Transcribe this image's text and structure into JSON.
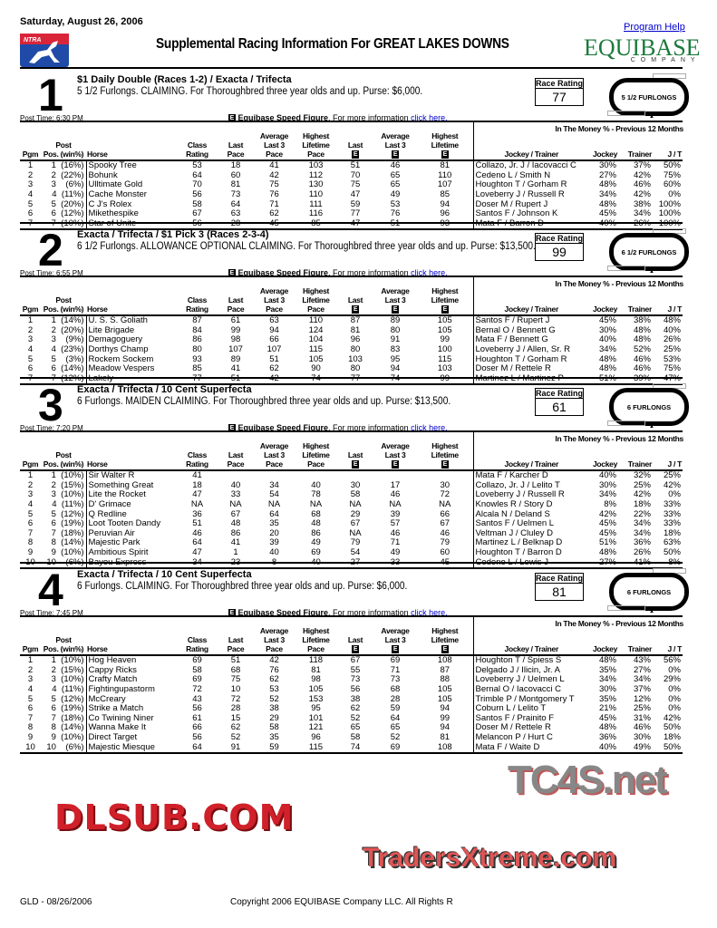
{
  "header": {
    "date": "Saturday, August 26, 2006",
    "logo_text": "NTRA",
    "title": "Supplemental Racing Information For GREAT LAKES DOWNS",
    "program_help": "Program Help",
    "equibase_logo": "EQUIBASE",
    "equibase_sub": "COMPANY",
    "watermark_top": "TC4S.net"
  },
  "speed_figure": {
    "icon": "E",
    "label": "Equibase Speed Figure",
    "text": ". For more information ",
    "link": "click here."
  },
  "rating_label": "Race Rating",
  "table_headers": [
    {
      "lines": [
        "",
        "",
        "Pgm"
      ],
      "e": false,
      "align": "c"
    },
    {
      "lines": [
        "",
        "Post",
        "Pos. (win%)"
      ],
      "e": false,
      "align": "c"
    },
    {
      "lines": [
        "",
        "",
        "Horse"
      ],
      "e": false,
      "align": "l"
    },
    {
      "lines": [
        "",
        "Class",
        "Rating"
      ],
      "e": false,
      "align": "c"
    },
    {
      "lines": [
        "",
        "Last",
        "Pace"
      ],
      "e": false,
      "align": "c"
    },
    {
      "lines": [
        "Average",
        "Last 3",
        "Pace"
      ],
      "e": false,
      "align": "c"
    },
    {
      "lines": [
        "Highest",
        "Lifetime",
        "Pace"
      ],
      "e": false,
      "align": "c"
    },
    {
      "lines": [
        "",
        "",
        "Last"
      ],
      "e": true,
      "align": "c"
    },
    {
      "lines": [
        "",
        "Average",
        "Last 3"
      ],
      "e": true,
      "align": "c"
    },
    {
      "lines": [
        "",
        "Highest",
        "Lifetime"
      ],
      "e": true,
      "align": "c"
    },
    {
      "lines": [
        "",
        "",
        "Jockey / Trainer"
      ],
      "e": false,
      "align": "c"
    },
    {
      "lines": [
        "",
        "",
        "Jockey"
      ],
      "e": false,
      "align": "r"
    },
    {
      "lines": [
        "",
        "",
        "Trainer"
      ],
      "e": false,
      "align": "r"
    },
    {
      "lines": [
        "",
        "",
        "J / T"
      ],
      "e": false,
      "align": "r"
    }
  ],
  "money_header": "In The Money % - Previous 12 Months",
  "races": [
    {
      "number": "1",
      "title": "$1 Daily Double (Races 1-2) / Exacta / Trifecta",
      "description": "5 1/2 Furlongs. CLAIMING. For Thoroughbred three year olds and up. Purse: $6,000.",
      "rating": "77",
      "distance": "5 1/2 FURLONGS",
      "post_time": "Post Time: 6:30 PM",
      "entries": [
        [
          "1",
          "1  (16%)",
          "Spooky Tree",
          "53",
          "18",
          "41",
          "103",
          "51",
          "46",
          "81",
          "Collazo, Jr. J / Iacovacci C",
          "30%",
          "37%",
          "50%"
        ],
        [
          "2",
          "2  (22%)",
          "Bohunk",
          "64",
          "60",
          "42",
          "112",
          "70",
          "65",
          "110",
          "Cedeno L / Smith N",
          "27%",
          "42%",
          "75%"
        ],
        [
          "3",
          "3    (6%)",
          "Ulltimate Gold",
          "70",
          "81",
          "75",
          "130",
          "75",
          "65",
          "107",
          "Houghton T / Gorham R",
          "48%",
          "46%",
          "60%"
        ],
        [
          "4",
          "4  (11%)",
          "Cache Monster",
          "56",
          "73",
          "76",
          "110",
          "47",
          "49",
          "85",
          "Loveberry J / Russell R",
          "34%",
          "42%",
          "0%"
        ],
        [
          "5",
          "5  (20%)",
          "C J's Rolex",
          "58",
          "64",
          "71",
          "111",
          "59",
          "53",
          "94",
          "Doser M / Rupert J",
          "48%",
          "38%",
          "100%"
        ],
        [
          "6",
          "6  (12%)",
          "Mikethespike",
          "67",
          "63",
          "62",
          "116",
          "77",
          "76",
          "96",
          "Santos F / Johnson K",
          "45%",
          "34%",
          "100%"
        ],
        [
          "7",
          "7  (10%)",
          "Star of Unite",
          "56",
          "28",
          "45",
          "85",
          "47",
          "51",
          "93",
          "Mata F / Barron D",
          "40%",
          "26%",
          "100%"
        ]
      ]
    },
    {
      "number": "2",
      "title": "Exacta / Trifecta / $1 Pick 3 (Races 2-3-4)",
      "description": "6 1/2 Furlongs. ALLOWANCE OPTIONAL CLAIMING. For Thoroughbred three year olds and up. Purse: $13,500.",
      "rating": "99",
      "distance": "6 1/2 FURLONGS",
      "post_time": "Post Time: 6:55 PM",
      "entries": [
        [
          "1",
          "1  (14%)",
          "U. S. S. Goliath",
          "87",
          "61",
          "63",
          "110",
          "87",
          "89",
          "105",
          "Santos F / Rupert J",
          "45%",
          "38%",
          "48%"
        ],
        [
          "2",
          "2  (20%)",
          "Lite Brigade",
          "84",
          "99",
          "94",
          "124",
          "81",
          "80",
          "105",
          "Bernal O / Bennett G",
          "30%",
          "48%",
          "40%"
        ],
        [
          "3",
          "3    (9%)",
          "Demagoguery",
          "86",
          "98",
          "66",
          "104",
          "96",
          "91",
          "99",
          "Mata F / Bennett G",
          "40%",
          "48%",
          "26%"
        ],
        [
          "4",
          "4  (23%)",
          "Dorthys Champ",
          "80",
          "107",
          "107",
          "115",
          "80",
          "83",
          "100",
          "Loveberry J / Allen, Sr. R",
          "34%",
          "52%",
          "25%"
        ],
        [
          "5",
          "5    (3%)",
          "Rockem Sockem",
          "93",
          "89",
          "51",
          "105",
          "103",
          "95",
          "115",
          "Houghton T / Gorham R",
          "48%",
          "46%",
          "53%"
        ],
        [
          "6",
          "6  (14%)",
          "Meadow Vespers",
          "85",
          "41",
          "62",
          "90",
          "80",
          "94",
          "103",
          "Doser M / Rettele R",
          "48%",
          "46%",
          "75%"
        ],
        [
          "7",
          "7  (12%)",
          "Lakely",
          "77",
          "51",
          "42",
          "74",
          "77",
          "74",
          "99",
          "Martinez L / Martinez P",
          "51%",
          "39%",
          "47%"
        ]
      ]
    },
    {
      "number": "3",
      "title": "Exacta / Trifecta / 10 Cent Superfecta",
      "description": "6 Furlongs. MAIDEN CLAIMING. For Thoroughbred three year olds and up. Purse: $13,500.",
      "rating": "61",
      "distance": "6 FURLONGS",
      "post_time": "Post Time: 7:20 PM",
      "entries": [
        [
          "1",
          "1  (10%)",
          "Sir Walter R",
          "41",
          "",
          "",
          "",
          "",
          "",
          "",
          "Mata F / Karcher D",
          "40%",
          "32%",
          "25%"
        ],
        [
          "2",
          "2  (15%)",
          "Something Great",
          "18",
          "40",
          "34",
          "40",
          "30",
          "17",
          "30",
          "Collazo, Jr. J / Lelito T",
          "30%",
          "25%",
          "42%"
        ],
        [
          "3",
          "3  (10%)",
          "Lite the Rocket",
          "47",
          "33",
          "54",
          "78",
          "58",
          "46",
          "72",
          "Loveberry J / Russell R",
          "34%",
          "42%",
          "0%"
        ],
        [
          "4",
          "4  (11%)",
          "D' Grimace",
          "NA",
          "NA",
          "NA",
          "NA",
          "NA",
          "NA",
          "NA",
          "Knowles R / Story D",
          "8%",
          "18%",
          "33%"
        ],
        [
          "5",
          "5  (12%)",
          "Q Redline",
          "36",
          "67",
          "64",
          "68",
          "29",
          "39",
          "66",
          "Alcala N / Deland S",
          "42%",
          "22%",
          "33%"
        ],
        [
          "6",
          "6  (19%)",
          "Loot Tooten Dandy",
          "51",
          "48",
          "35",
          "48",
          "67",
          "57",
          "67",
          "Santos F / Uelmen L",
          "45%",
          "34%",
          "33%"
        ],
        [
          "7",
          "7  (18%)",
          "Peruvian Air",
          "46",
          "86",
          "20",
          "86",
          "NA",
          "46",
          "46",
          "Veltman J / Cluley D",
          "45%",
          "34%",
          "18%"
        ],
        [
          "8",
          "8  (14%)",
          "Majestic Park",
          "64",
          "41",
          "39",
          "49",
          "79",
          "71",
          "79",
          "Martinez L / Belknap D",
          "51%",
          "36%",
          "63%"
        ],
        [
          "9",
          "9  (10%)",
          "Ambitious Spirit",
          "47",
          "1",
          "40",
          "69",
          "54",
          "49",
          "60",
          "Houghton T / Barron D",
          "48%",
          "26%",
          "50%"
        ],
        [
          "10",
          "10    (6%)",
          "Bayou Express",
          "34",
          "23",
          "8",
          "40",
          "27",
          "33",
          "45",
          "Cedeno L / Lewis J",
          "27%",
          "41%",
          "8%"
        ]
      ]
    },
    {
      "number": "4",
      "title": "Exacta / Trifecta / 10 Cent Superfecta",
      "description": "6 Furlongs. CLAIMING. For Thoroughbred three year olds and up. Purse: $6,000.",
      "rating": "81",
      "distance": "6 FURLONGS",
      "post_time": "Post Time: 7:45 PM",
      "entries": [
        [
          "1",
          "1  (10%)",
          "Hog Heaven",
          "69",
          "51",
          "42",
          "118",
          "67",
          "69",
          "108",
          "Houghton T / Spiess S",
          "48%",
          "43%",
          "56%"
        ],
        [
          "2",
          "2  (15%)",
          "Cappy Ricks",
          "58",
          "68",
          "76",
          "81",
          "55",
          "71",
          "87",
          "Delgado J / Ilicin, Jr. A",
          "35%",
          "27%",
          "0%"
        ],
        [
          "3",
          "3  (10%)",
          "Crafty Match",
          "69",
          "75",
          "62",
          "98",
          "73",
          "73",
          "88",
          "Loveberry J / Uelmen L",
          "34%",
          "34%",
          "29%"
        ],
        [
          "4",
          "4  (11%)",
          "Fightingupastorm",
          "72",
          "10",
          "53",
          "105",
          "56",
          "68",
          "105",
          "Bernal O / Iacovacci C",
          "30%",
          "37%",
          "0%"
        ],
        [
          "5",
          "5  (12%)",
          "McCreary",
          "43",
          "72",
          "52",
          "153",
          "38",
          "28",
          "105",
          "Trimble P / Montgomery T",
          "35%",
          "12%",
          "0%"
        ],
        [
          "6",
          "6  (19%)",
          "Strike a Match",
          "56",
          "28",
          "38",
          "95",
          "62",
          "59",
          "94",
          "Coburn L / Lelito T",
          "21%",
          "25%",
          "0%"
        ],
        [
          "7",
          "7  (18%)",
          "Co Twining Niner",
          "61",
          "15",
          "29",
          "101",
          "52",
          "64",
          "99",
          "Santos F / Prainito F",
          "45%",
          "31%",
          "42%"
        ],
        [
          "8",
          "8  (14%)",
          "Wanna Make It",
          "66",
          "62",
          "58",
          "121",
          "65",
          "65",
          "94",
          "Doser M / Rettele R",
          "48%",
          "46%",
          "50%"
        ],
        [
          "9",
          "9  (10%)",
          "Direct Target",
          "56",
          "52",
          "35",
          "96",
          "58",
          "52",
          "81",
          "Melancon P / Hurt C",
          "36%",
          "30%",
          "18%"
        ],
        [
          "10",
          "10    (6%)",
          "Majestic Miesque",
          "64",
          "91",
          "59",
          "115",
          "74",
          "69",
          "108",
          "Mata F / Waite D",
          "40%",
          "49%",
          "50%"
        ]
      ]
    }
  ],
  "footer": {
    "left": "GLD - 08/26/2006",
    "copyright": "Copyright 2006 EQUIBASE Company LLC. All Rights R"
  },
  "watermarks": {
    "middle": "DLSUB.COM",
    "bottom": "TradersXtreme.com"
  }
}
